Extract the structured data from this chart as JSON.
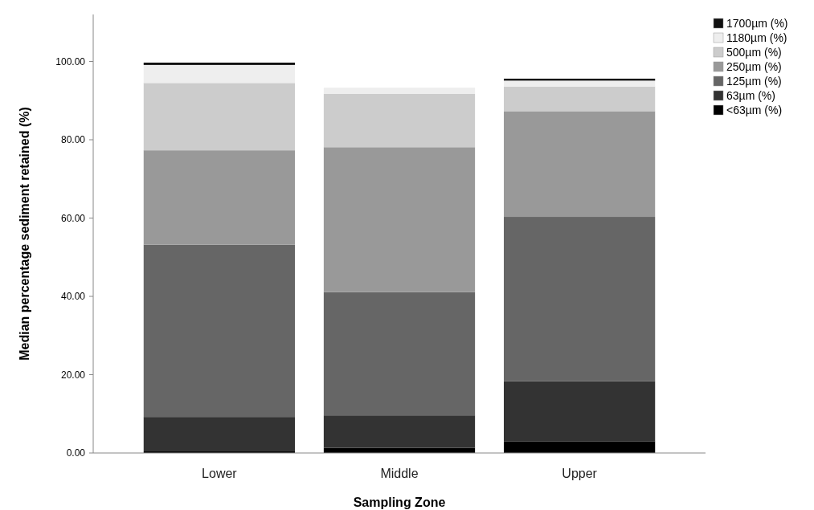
{
  "chart_data": {
    "type": "bar",
    "stacked": true,
    "xlabel": "Sampling Zone",
    "ylabel": "Median percentage sediment retained (%)",
    "categories": [
      "Lower",
      "Middle",
      "Upper"
    ],
    "series": [
      {
        "name": "<63µm (%)",
        "color": "#000000",
        "values": [
          0.4,
          1.3,
          3.0
        ]
      },
      {
        "name": "63µm (%)",
        "color": "#333333",
        "values": [
          8.8,
          8.3,
          15.3
        ]
      },
      {
        "name": "125µm (%)",
        "color": "#666666",
        "values": [
          44.0,
          31.5,
          42.0
        ]
      },
      {
        "name": "250µm (%)",
        "color": "#999999",
        "values": [
          24.1,
          37.0,
          27.0
        ]
      },
      {
        "name": "500µm (%)",
        "color": "#cccccc",
        "values": [
          17.2,
          13.6,
          6.3
        ]
      },
      {
        "name": "1180µm (%)",
        "color": "#eeeeee",
        "values": [
          4.6,
          1.6,
          1.5
        ]
      },
      {
        "name": "1700µm (%)",
        "color": "#111111",
        "values": [
          0.6,
          0,
          0.5
        ]
      }
    ],
    "ylim": [
      0,
      112
    ],
    "yticks": [
      {
        "value": 0,
        "label": "0.00"
      },
      {
        "value": 20,
        "label": "20.00"
      },
      {
        "value": 40,
        "label": "40.00"
      },
      {
        "value": 60,
        "label": "60.00"
      },
      {
        "value": 80,
        "label": "80.00"
      },
      {
        "value": 100,
        "label": "100.00"
      }
    ],
    "grid": false,
    "legend": "top right"
  }
}
